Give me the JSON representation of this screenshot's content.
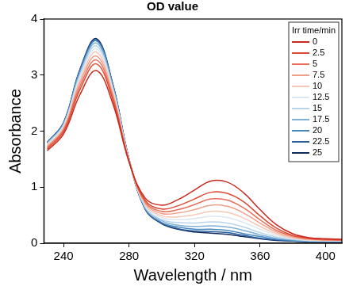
{
  "chart_data": {
    "type": "line",
    "title": "OD value",
    "x_label": "Wavelength / nm",
    "y_label": "Absorbance",
    "legend": "top-right",
    "legend_title": "Irr time/min",
    "grid": false,
    "xlim": [
      228,
      410
    ],
    "xticks": [
      240,
      280,
      320,
      360,
      400
    ],
    "ylim": [
      0,
      4
    ],
    "yticks": [
      0,
      1,
      2,
      3,
      4
    ],
    "x": [
      230,
      240,
      250,
      260,
      270,
      280,
      290,
      300,
      310,
      320,
      330,
      340,
      350,
      360,
      370,
      380,
      390,
      400,
      410
    ],
    "series": [
      {
        "name": "0",
        "color": "#c8281e",
        "values": [
          1.65,
          1.95,
          2.65,
          3.08,
          2.5,
          1.45,
          0.8,
          0.68,
          0.78,
          0.95,
          1.11,
          1.09,
          0.9,
          0.6,
          0.33,
          0.17,
          0.1,
          0.08,
          0.07
        ]
      },
      {
        "name": "2.5",
        "color": "#dc4a32",
        "values": [
          1.68,
          1.99,
          2.74,
          3.2,
          2.57,
          1.46,
          0.76,
          0.61,
          0.67,
          0.79,
          0.91,
          0.89,
          0.74,
          0.49,
          0.27,
          0.14,
          0.09,
          0.07,
          0.06
        ]
      },
      {
        "name": "5",
        "color": "#e8705a",
        "values": [
          1.7,
          2.02,
          2.8,
          3.27,
          2.62,
          1.47,
          0.73,
          0.57,
          0.6,
          0.69,
          0.79,
          0.77,
          0.63,
          0.42,
          0.23,
          0.13,
          0.08,
          0.06,
          0.06
        ]
      },
      {
        "name": "7.5",
        "color": "#f0a088",
        "values": [
          1.72,
          2.04,
          2.86,
          3.34,
          2.66,
          1.47,
          0.71,
          0.53,
          0.54,
          0.6,
          0.68,
          0.66,
          0.54,
          0.36,
          0.2,
          0.11,
          0.07,
          0.06,
          0.05
        ]
      },
      {
        "name": "10",
        "color": "#f5c8b8",
        "values": [
          1.74,
          2.07,
          2.91,
          3.41,
          2.7,
          1.48,
          0.68,
          0.49,
          0.47,
          0.51,
          0.57,
          0.55,
          0.45,
          0.3,
          0.17,
          0.09,
          0.06,
          0.05,
          0.05
        ]
      },
      {
        "name": "12.5",
        "color": "#dde8f2",
        "values": [
          1.75,
          2.09,
          2.96,
          3.47,
          2.74,
          1.48,
          0.66,
          0.46,
          0.42,
          0.44,
          0.48,
          0.46,
          0.37,
          0.25,
          0.14,
          0.08,
          0.05,
          0.05,
          0.04
        ]
      },
      {
        "name": "15",
        "color": "#b8d4ea",
        "values": [
          1.77,
          2.11,
          3.0,
          3.52,
          2.77,
          1.49,
          0.64,
          0.42,
          0.37,
          0.36,
          0.38,
          0.36,
          0.29,
          0.19,
          0.11,
          0.07,
          0.05,
          0.04,
          0.04
        ]
      },
      {
        "name": "17.5",
        "color": "#7fb0d8",
        "values": [
          1.78,
          2.12,
          3.04,
          3.57,
          2.8,
          1.49,
          0.63,
          0.4,
          0.32,
          0.3,
          0.31,
          0.29,
          0.23,
          0.15,
          0.09,
          0.06,
          0.04,
          0.04,
          0.04
        ]
      },
      {
        "name": "20",
        "color": "#4a88c0",
        "values": [
          1.79,
          2.14,
          3.07,
          3.61,
          2.83,
          1.5,
          0.61,
          0.37,
          0.29,
          0.25,
          0.25,
          0.23,
          0.17,
          0.12,
          0.07,
          0.05,
          0.03,
          0.03,
          0.03
        ]
      },
      {
        "name": "22.5",
        "color": "#2a5f9e",
        "values": [
          1.8,
          2.14,
          3.09,
          3.63,
          2.84,
          1.5,
          0.61,
          0.36,
          0.26,
          0.22,
          0.21,
          0.19,
          0.14,
          0.09,
          0.06,
          0.04,
          0.03,
          0.03,
          0.03
        ]
      },
      {
        "name": "25",
        "color": "#102a5c",
        "values": [
          1.8,
          2.15,
          3.1,
          3.65,
          2.85,
          1.5,
          0.6,
          0.35,
          0.25,
          0.2,
          0.18,
          0.16,
          0.12,
          0.08,
          0.05,
          0.04,
          0.03,
          0.03,
          0.03
        ]
      }
    ]
  }
}
